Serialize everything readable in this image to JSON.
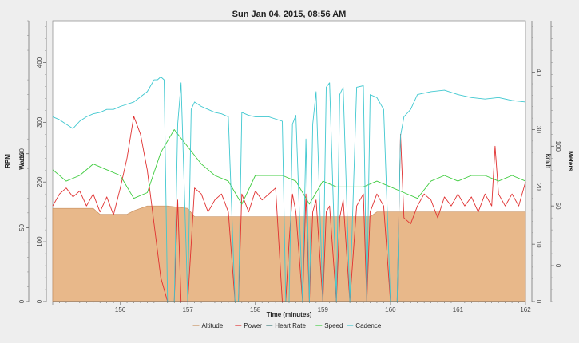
{
  "chart_data": {
    "type": "line",
    "title": "Sun Jan 04, 2015, 08:56 AM",
    "xlabel": "Time (minutes)",
    "xlim": [
      155.0,
      162.0
    ],
    "x_ticks": [
      156,
      157,
      158,
      159,
      160,
      161,
      162
    ],
    "axes": [
      {
        "label": "RPM",
        "side": "left",
        "ticks": [
          0,
          50,
          100
        ],
        "lim": [
          0,
          190
        ]
      },
      {
        "label": "Watts",
        "side": "left",
        "ticks": [
          0,
          100,
          200,
          300,
          400
        ],
        "lim": [
          0,
          470
        ]
      },
      {
        "label": "km/h",
        "side": "right",
        "ticks": [
          0,
          10,
          20,
          30,
          40
        ],
        "lim": [
          0,
          49
        ]
      },
      {
        "label": "Meters",
        "side": "right",
        "ticks": [
          0,
          50,
          100
        ],
        "lim": [
          -30,
          205
        ]
      }
    ],
    "grid": false,
    "legend_position": "bottom",
    "series": [
      {
        "name": "Altitude",
        "axis": "Meters",
        "color": "#e8b88a",
        "style": "area",
        "x": [
          155.0,
          155.6,
          155.7,
          156.1,
          156.2,
          156.4,
          156.7,
          157.0,
          157.1,
          157.5,
          158.0,
          158.5,
          159.0,
          159.5,
          159.7,
          159.8,
          160.0,
          160.5,
          161.0,
          161.5,
          162.0
        ],
        "y": [
          48,
          48,
          43,
          43,
          46,
          50,
          50,
          48,
          41,
          41,
          41,
          41,
          41,
          41,
          41,
          45,
          45,
          45,
          45,
          45,
          45
        ]
      },
      {
        "name": "Power",
        "axis": "Watts",
        "color": "#e03030",
        "style": "line",
        "x": [
          155.0,
          155.1,
          155.2,
          155.3,
          155.4,
          155.5,
          155.6,
          155.7,
          155.8,
          155.9,
          156.0,
          156.1,
          156.2,
          156.3,
          156.4,
          156.5,
          156.6,
          156.7,
          156.75,
          156.8,
          156.85,
          156.9,
          157.0,
          157.1,
          157.2,
          157.3,
          157.4,
          157.5,
          157.6,
          157.7,
          157.75,
          157.8,
          157.9,
          158.0,
          158.1,
          158.2,
          158.3,
          158.4,
          158.45,
          158.5,
          158.55,
          158.6,
          158.7,
          158.75,
          158.8,
          158.85,
          158.9,
          159.0,
          159.05,
          159.1,
          159.2,
          159.25,
          159.3,
          159.4,
          159.5,
          159.6,
          159.65,
          159.7,
          159.8,
          159.9,
          160.0,
          160.1,
          160.15,
          160.2,
          160.3,
          160.4,
          160.5,
          160.6,
          160.7,
          160.8,
          160.9,
          161.0,
          161.1,
          161.2,
          161.3,
          161.4,
          161.5,
          161.55,
          161.6,
          161.7,
          161.8,
          161.9,
          162.0
        ],
        "y": [
          160,
          180,
          190,
          175,
          185,
          160,
          180,
          150,
          175,
          145,
          190,
          240,
          310,
          280,
          220,
          130,
          40,
          0,
          0,
          0,
          170,
          0,
          0,
          190,
          180,
          150,
          170,
          180,
          150,
          0,
          0,
          180,
          150,
          185,
          170,
          180,
          190,
          0,
          0,
          100,
          180,
          150,
          0,
          180,
          0,
          150,
          170,
          0,
          150,
          160,
          0,
          140,
          170,
          0,
          160,
          180,
          0,
          150,
          180,
          160,
          0,
          0,
          280,
          140,
          130,
          160,
          180,
          170,
          140,
          175,
          160,
          180,
          160,
          175,
          150,
          180,
          160,
          260,
          180,
          160,
          180,
          160,
          200
        ]
      },
      {
        "name": "Heart Rate",
        "axis": "RPM",
        "color": "#3a7a7a",
        "style": "line",
        "x": [
          155.0,
          162.0
        ],
        "y": [
          null,
          null
        ]
      },
      {
        "name": "Speed",
        "axis": "km/h",
        "color": "#40cc40",
        "style": "line",
        "x": [
          155.0,
          155.2,
          155.4,
          155.6,
          155.8,
          156.0,
          156.2,
          156.4,
          156.6,
          156.8,
          157.0,
          157.2,
          157.4,
          157.6,
          157.8,
          158.0,
          158.2,
          158.4,
          158.6,
          158.8,
          159.0,
          159.2,
          159.4,
          159.6,
          159.8,
          160.0,
          160.2,
          160.4,
          160.6,
          160.8,
          161.0,
          161.2,
          161.4,
          161.6,
          161.8,
          162.0
        ],
        "y": [
          23,
          21,
          22,
          24,
          23,
          22,
          18,
          19,
          26,
          30,
          27,
          24,
          22,
          21,
          17,
          22,
          22,
          22,
          21,
          17,
          21,
          20,
          20,
          20,
          21,
          20,
          19,
          18,
          21,
          22,
          21,
          22,
          22,
          21,
          22,
          21
        ]
      },
      {
        "name": "Cadence",
        "axis": "RPM",
        "color": "#40c8d0",
        "style": "line",
        "x": [
          155.0,
          155.1,
          155.2,
          155.3,
          155.4,
          155.5,
          155.6,
          155.7,
          155.8,
          155.9,
          156.0,
          156.2,
          156.4,
          156.5,
          156.55,
          156.6,
          156.65,
          156.7,
          156.8,
          156.85,
          156.9,
          157.0,
          157.05,
          157.1,
          157.2,
          157.3,
          157.4,
          157.5,
          157.6,
          157.7,
          157.75,
          157.8,
          157.9,
          158.0,
          158.2,
          158.4,
          158.45,
          158.5,
          158.55,
          158.6,
          158.7,
          158.75,
          158.8,
          158.85,
          158.9,
          159.0,
          159.05,
          159.1,
          159.2,
          159.25,
          159.3,
          159.4,
          159.5,
          159.6,
          159.65,
          159.7,
          159.8,
          159.9,
          160.0,
          160.1,
          160.15,
          160.2,
          160.3,
          160.4,
          160.6,
          160.8,
          161.0,
          161.2,
          161.4,
          161.6,
          161.8,
          162.0
        ],
        "y": [
          125,
          123,
          120,
          117,
          122,
          125,
          127,
          128,
          130,
          130,
          132,
          135,
          142,
          150,
          150,
          152,
          150,
          0,
          0,
          120,
          148,
          0,
          130,
          135,
          132,
          130,
          128,
          127,
          125,
          0,
          0,
          128,
          126,
          125,
          125,
          122,
          0,
          0,
          120,
          126,
          0,
          110,
          0,
          120,
          142,
          0,
          145,
          148,
          0,
          140,
          145,
          0,
          145,
          146,
          0,
          140,
          138,
          130,
          0,
          0,
          112,
          125,
          130,
          140,
          142,
          143,
          140,
          138,
          137,
          138,
          136,
          135
        ]
      }
    ]
  }
}
